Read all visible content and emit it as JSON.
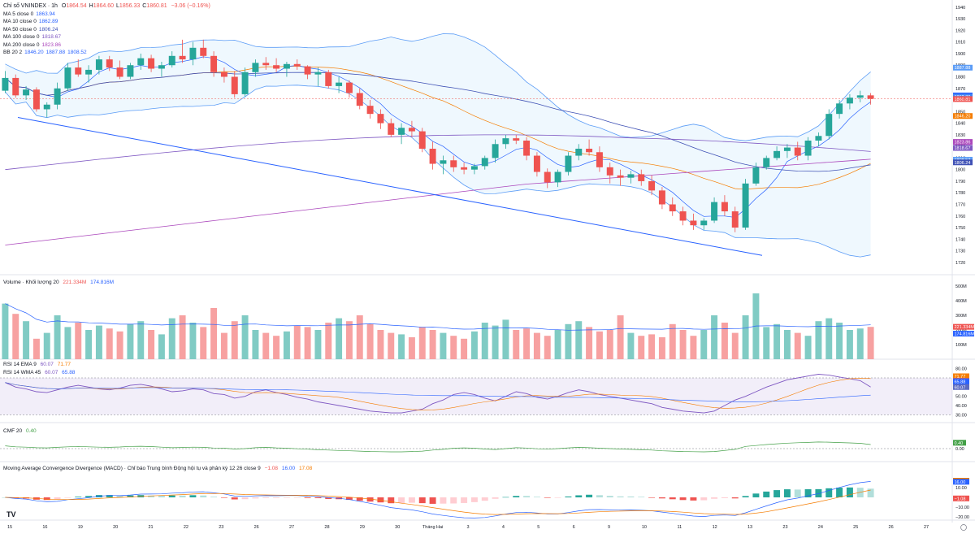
{
  "title": {
    "symbol": "Chỉ số VNINDEX · 1h",
    "ohlc": [
      {
        "key": "O",
        "value": "1864.54"
      },
      {
        "key": "H",
        "value": "1864.60"
      },
      {
        "key": "L",
        "value": "1856.33"
      },
      {
        "key": "C",
        "value": "1860.81"
      }
    ],
    "change": "−3.06 (−0.16%)"
  },
  "overlays": [
    {
      "label": "MA 5 close 0",
      "values": [
        "1863.94"
      ],
      "color": "#2962ff"
    },
    {
      "label": "MA 10 close 0",
      "values": [
        "1862.89"
      ],
      "color": "#2962ff"
    },
    {
      "label": "MA 50 close 0",
      "values": [
        "1806.24"
      ],
      "color": "#3f51b5"
    },
    {
      "label": "MA 100 close 0",
      "values": [
        "1818.67"
      ],
      "color": "#7e57c2"
    },
    {
      "label": "MA 200 close 0",
      "values": [
        "1823.86"
      ],
      "color": "#ab47bc"
    },
    {
      "label": "BB 20 2",
      "values": [
        "1846.20",
        "1887.88",
        "1808.52"
      ],
      "color": "#2962ff"
    }
  ],
  "volume_legend": {
    "label": "Volume · Khối lượng 20",
    "values": [
      "221.334M",
      "174.816M"
    ]
  },
  "rsi_legend": [
    {
      "label": "RSI 14 EMA 9",
      "values": [
        "60.07",
        "71.77"
      ]
    },
    {
      "label": "RSI 14 WMA 45",
      "values": [
        "60.07",
        "65.88"
      ]
    }
  ],
  "cmf_legend": {
    "label": "CMF 20",
    "values": [
      "0.40"
    ]
  },
  "macd_legend": {
    "label": "Moving Average Convergence Divergence (MACD) · Chỉ báo Trung bình Động hội tụ và phân kỳ 12 26 close 9",
    "values": [
      "−1.08",
      "16.00",
      "17.08"
    ]
  },
  "price_badges": [
    {
      "value": "1887.88",
      "price": 1887.88,
      "color": "#5b9cf6"
    },
    {
      "value": "1863.94",
      "price": 1863.94,
      "color": "#2962ff"
    },
    {
      "value": "1862.89",
      "price": 1862.89,
      "color": "#4285f4"
    },
    {
      "value": "1860.81",
      "price": 1860.81,
      "color": "#ef5350"
    },
    {
      "value": "1846.20",
      "price": 1846.2,
      "color": "#f57c00"
    },
    {
      "value": "1823.86",
      "price": 1823.86,
      "color": "#ab47bc"
    },
    {
      "value": "1818.67",
      "price": 1818.67,
      "color": "#7e57c2"
    },
    {
      "value": "1808.52",
      "price": 1808.52,
      "color": "#5b9cf6"
    },
    {
      "value": "1806.24",
      "price": 1806.24,
      "color": "#3f51b5"
    }
  ],
  "volume_badges": [
    {
      "value": "221.334M",
      "vol": 221.334,
      "color": "#ef5350"
    },
    {
      "value": "174.816M",
      "vol": 174.816,
      "color": "#2962ff"
    }
  ],
  "rsi_badges": [
    {
      "value": "71.77",
      "v": 71.77,
      "color": "#f57c00"
    },
    {
      "value": "66.67",
      "v": 66.67,
      "color": "#7e57c2"
    },
    {
      "value": "65.88",
      "v": 65.88,
      "color": "#2962ff"
    },
    {
      "value": "60.07",
      "v": 60.07,
      "color": "#5c6bc0"
    }
  ],
  "cmf_badges": [
    {
      "value": "0.40",
      "v": 0.4,
      "color": "#43a047"
    }
  ],
  "macd_badges": [
    {
      "value": "17.08",
      "v": 17.08,
      "color": "#f57c00"
    },
    {
      "value": "16.00",
      "v": 16.0,
      "color": "#2962ff"
    },
    {
      "value": "−1.08",
      "v": -1.08,
      "color": "#ef5350"
    }
  ],
  "colors": {
    "up": "#26a69a",
    "down": "#ef5350",
    "up_vol": "#80cbc4",
    "down_vol": "#f7a1a1"
  },
  "chart_data": {
    "type": "candlestick",
    "price_axis": {
      "ticks": [
        1720,
        1730,
        1740,
        1750,
        1760,
        1770,
        1780,
        1790,
        1800,
        1810,
        1820,
        1830,
        1840,
        1850,
        1860,
        1870,
        1880,
        1890,
        1900,
        1910,
        1920,
        1930,
        1940
      ],
      "range": [
        1715,
        1942
      ]
    },
    "volume_axis": {
      "ticks": [
        "100M",
        "200M",
        "300M",
        "400M",
        "500M"
      ]
    },
    "rsi_axis": {
      "ticks": [
        30.0,
        40.0,
        50.0,
        60.0,
        70.0,
        80.0
      ],
      "band": [
        30,
        70
      ]
    },
    "cmf_axis": {
      "ticks": [
        "0.00"
      ]
    },
    "macd_axis": {
      "ticks": [
        "−20.00",
        "−10.00",
        "10.00"
      ]
    },
    "time_axis": [
      "15",
      "16",
      "19",
      "20",
      "21",
      "22",
      "23",
      "26",
      "27",
      "28",
      "29",
      "30",
      "Tháng Hai",
      "3",
      "4",
      "5",
      "6",
      "9",
      "10",
      "11",
      "12",
      "13",
      "23",
      "24",
      "25",
      "26",
      "27"
    ],
    "candles": [
      [
        1868,
        1885,
        1866,
        1879
      ],
      [
        1879,
        1882,
        1862,
        1864
      ],
      [
        1864,
        1872,
        1860,
        1869
      ],
      [
        1869,
        1871,
        1850,
        1852
      ],
      [
        1852,
        1858,
        1845,
        1856
      ],
      [
        1856,
        1875,
        1852,
        1870
      ],
      [
        1870,
        1892,
        1868,
        1888
      ],
      [
        1888,
        1895,
        1880,
        1882
      ],
      [
        1882,
        1890,
        1875,
        1886
      ],
      [
        1886,
        1898,
        1882,
        1895
      ],
      [
        1895,
        1898,
        1885,
        1888
      ],
      [
        1888,
        1894,
        1878,
        1880
      ],
      [
        1880,
        1892,
        1878,
        1890
      ],
      [
        1890,
        1900,
        1886,
        1896
      ],
      [
        1896,
        1899,
        1884,
        1887
      ],
      [
        1887,
        1893,
        1880,
        1890
      ],
      [
        1890,
        1902,
        1888,
        1898
      ],
      [
        1898,
        1912,
        1892,
        1895
      ],
      [
        1895,
        1910,
        1890,
        1905
      ],
      [
        1905,
        1912,
        1896,
        1898
      ],
      [
        1898,
        1902,
        1880,
        1884
      ],
      [
        1884,
        1888,
        1875,
        1880
      ],
      [
        1880,
        1885,
        1862,
        1865
      ],
      [
        1865,
        1888,
        1863,
        1884
      ],
      [
        1884,
        1895,
        1880,
        1892
      ],
      [
        1892,
        1897,
        1886,
        1890
      ],
      [
        1890,
        1896,
        1884,
        1887
      ],
      [
        1887,
        1893,
        1880,
        1891
      ],
      [
        1891,
        1895,
        1886,
        1889
      ],
      [
        1889,
        1890,
        1878,
        1882
      ],
      [
        1882,
        1888,
        1872,
        1884
      ],
      [
        1884,
        1886,
        1870,
        1872
      ],
      [
        1872,
        1880,
        1866,
        1875
      ],
      [
        1875,
        1877,
        1862,
        1866
      ],
      [
        1866,
        1870,
        1852,
        1855
      ],
      [
        1855,
        1860,
        1844,
        1848
      ],
      [
        1848,
        1852,
        1835,
        1840
      ],
      [
        1840,
        1844,
        1828,
        1830
      ],
      [
        1830,
        1840,
        1822,
        1836
      ],
      [
        1836,
        1842,
        1828,
        1833
      ],
      [
        1833,
        1836,
        1815,
        1818
      ],
      [
        1818,
        1824,
        1800,
        1805
      ],
      [
        1805,
        1812,
        1796,
        1808
      ],
      [
        1808,
        1812,
        1798,
        1802
      ],
      [
        1802,
        1806,
        1796,
        1800
      ],
      [
        1800,
        1805,
        1796,
        1803
      ],
      [
        1803,
        1812,
        1800,
        1810
      ],
      [
        1810,
        1826,
        1806,
        1822
      ],
      [
        1822,
        1830,
        1818,
        1827
      ],
      [
        1827,
        1830,
        1822,
        1825
      ],
      [
        1825,
        1828,
        1808,
        1812
      ],
      [
        1812,
        1815,
        1794,
        1798
      ],
      [
        1798,
        1801,
        1784,
        1789
      ],
      [
        1789,
        1800,
        1785,
        1798
      ],
      [
        1798,
        1815,
        1795,
        1812
      ],
      [
        1812,
        1822,
        1808,
        1818
      ],
      [
        1818,
        1826,
        1812,
        1815
      ],
      [
        1815,
        1820,
        1798,
        1802
      ],
      [
        1802,
        1806,
        1788,
        1795
      ],
      [
        1795,
        1800,
        1786,
        1793
      ],
      [
        1793,
        1799,
        1788,
        1796
      ],
      [
        1796,
        1800,
        1786,
        1790
      ],
      [
        1790,
        1795,
        1778,
        1782
      ],
      [
        1782,
        1785,
        1766,
        1770
      ],
      [
        1770,
        1776,
        1760,
        1764
      ],
      [
        1764,
        1768,
        1752,
        1756
      ],
      [
        1756,
        1762,
        1748,
        1752
      ],
      [
        1752,
        1758,
        1748,
        1756
      ],
      [
        1756,
        1776,
        1754,
        1772
      ],
      [
        1772,
        1778,
        1760,
        1764
      ],
      [
        1764,
        1768,
        1746,
        1750
      ],
      [
        1750,
        1792,
        1748,
        1788
      ],
      [
        1788,
        1806,
        1786,
        1802
      ],
      [
        1802,
        1812,
        1800,
        1810
      ],
      [
        1810,
        1820,
        1808,
        1816
      ],
      [
        1816,
        1822,
        1810,
        1819
      ],
      [
        1819,
        1824,
        1808,
        1812
      ],
      [
        1812,
        1828,
        1808,
        1825
      ],
      [
        1825,
        1832,
        1820,
        1829
      ],
      [
        1829,
        1852,
        1826,
        1848
      ],
      [
        1848,
        1860,
        1844,
        1857
      ],
      [
        1857,
        1865,
        1852,
        1862
      ],
      [
        1862,
        1868,
        1858,
        1864
      ],
      [
        1864,
        1866,
        1856,
        1861
      ]
    ],
    "volume_millions": [
      380,
      310,
      260,
      140,
      180,
      300,
      220,
      250,
      200,
      230,
      210,
      190,
      240,
      260,
      200,
      170,
      280,
      300,
      250,
      220,
      350,
      180,
      260,
      300,
      200,
      180,
      160,
      190,
      230,
      220,
      200,
      250,
      280,
      260,
      300,
      240,
      200,
      180,
      170,
      150,
      220,
      200,
      180,
      160,
      140,
      190,
      250,
      230,
      270,
      200,
      210,
      180,
      160,
      200,
      240,
      260,
      220,
      190,
      200,
      300,
      180,
      160,
      170,
      150,
      240,
      200,
      160,
      200,
      300,
      250,
      180,
      300,
      450,
      220,
      240,
      200,
      180,
      160,
      260,
      280,
      250,
      200,
      210,
      221
    ],
    "rsi": [
      65,
      60,
      58,
      55,
      54,
      57,
      60,
      62,
      60,
      58,
      57,
      59,
      62,
      63,
      61,
      58,
      55,
      56,
      58,
      57,
      53,
      52,
      48,
      50,
      55,
      57,
      54,
      52,
      49,
      47,
      44,
      42,
      40,
      38,
      36,
      34,
      33,
      32,
      32,
      34,
      36,
      42,
      46,
      52,
      54,
      52,
      48,
      45,
      50,
      55,
      53,
      49,
      47,
      50,
      54,
      57,
      55,
      52,
      50,
      48,
      46,
      44,
      42,
      38,
      36,
      34,
      33,
      32,
      34,
      40,
      46,
      50,
      55,
      60,
      64,
      68,
      70,
      72,
      74,
      73,
      71,
      69,
      67,
      60
    ]
  }
}
